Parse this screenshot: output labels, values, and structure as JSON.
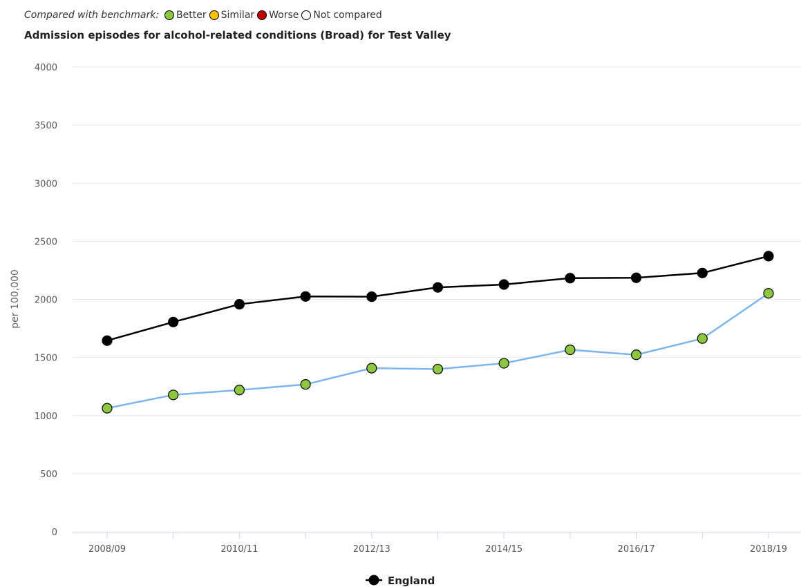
{
  "benchmark": {
    "prefix": "Compared with benchmark:",
    "items": [
      {
        "label": "Better",
        "color": "#8dc63f"
      },
      {
        "label": "Similar",
        "color": "#ffc000"
      },
      {
        "label": "Worse",
        "color": "#c00000"
      },
      {
        "label": "Not compared",
        "color": "#ffffff"
      }
    ]
  },
  "chart_data": {
    "type": "line",
    "title": "Admission episodes for alcohol-related conditions (Broad) for Test Valley",
    "ylabel": "per 100,000",
    "xlabel": "",
    "ylim": [
      0,
      4000
    ],
    "yticks": [
      0,
      500,
      1000,
      1500,
      2000,
      2500,
      3000,
      3500,
      4000
    ],
    "categories": [
      "2008/09",
      "2009/10",
      "2010/11",
      "2011/12",
      "2012/13",
      "2013/14",
      "2014/15",
      "2015/16",
      "2016/17",
      "2017/18",
      "2018/19"
    ],
    "xtick_labels_shown": [
      "2008/09",
      "2010/11",
      "2012/13",
      "2014/15",
      "2016/17",
      "2018/19"
    ],
    "grid": true,
    "legend_position": "bottom-center",
    "series": [
      {
        "name": "England",
        "line_color": "#000000",
        "marker_color": "#000000",
        "in_legend": true,
        "values": [
          1645,
          1805,
          1958,
          2025,
          2023,
          2103,
          2128,
          2183,
          2186,
          2227,
          2372
        ]
      },
      {
        "name": "",
        "line_color": "#7cb5ec",
        "marker_color": "#8dc63f",
        "in_legend": false,
        "values": [
          1063,
          1178,
          1220,
          1268,
          1408,
          1400,
          1450,
          1566,
          1523,
          1663,
          2052
        ]
      }
    ]
  }
}
